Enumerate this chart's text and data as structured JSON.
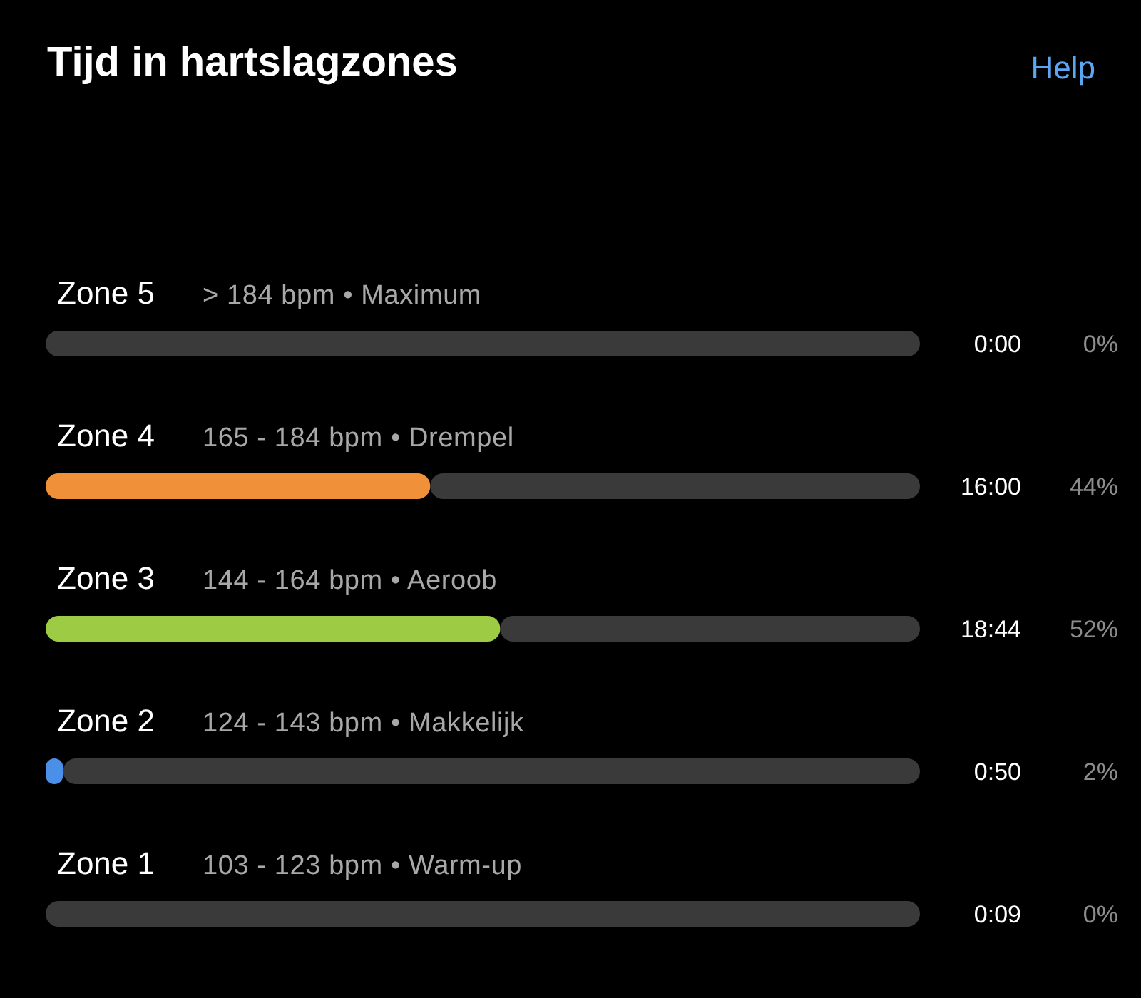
{
  "chart_data": {
    "type": "bar",
    "orientation": "horizontal",
    "stacked": true,
    "title": "Tijd in hartslagzones",
    "categories": [
      "Zone 5",
      "Zone 4",
      "Zone 3",
      "Zone 2",
      "Zone 1"
    ],
    "series": [
      {
        "colors": [
          "#e0453a",
          "#f0913a",
          "#9dcb44",
          "#4a8fe8",
          "#8a8a8a"
        ],
        "values": [
          0,
          44,
          52,
          2,
          0
        ],
        "value_labels": [
          "0%",
          "44%",
          "52%",
          "2%",
          "0%"
        ]
      },
      {
        "color": "#3a3a3a",
        "values": [
          100,
          56,
          48,
          98,
          100
        ]
      }
    ],
    "xlim": [
      0,
      100
    ],
    "tick_labels": false,
    "grid": false,
    "legend": false,
    "annotations": [
      "Help",
      "> 184 bpm • Maximum",
      "165 - 184 bpm • Drempel",
      "144 - 164 bpm • Aeroob",
      "124 - 143 bpm • Makkelijk",
      "103 - 123 bpm • Warm-up",
      "0:00",
      "16:00",
      "18:44",
      "0:50",
      "0:09"
    ]
  }
}
